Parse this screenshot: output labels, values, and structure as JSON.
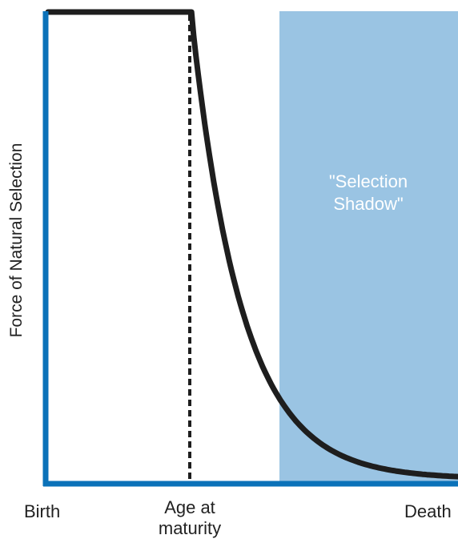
{
  "chart_data": {
    "type": "line",
    "ylabel": "Force of Natural Selection",
    "x_tick_labels": {
      "birth": "Birth",
      "maturity": "Age at\nmaturity",
      "death": "Death"
    },
    "annotation": "\"Selection\nShadow\"",
    "series": [
      {
        "shape": "flat at maximum from birth to age at maturity, then exponential decline toward zero by death",
        "points": [
          {
            "x": 0.0,
            "y": 1.0
          },
          {
            "x": 0.35,
            "y": 1.0
          },
          {
            "x": 0.45,
            "y": 0.55
          },
          {
            "x": 0.55,
            "y": 0.3
          },
          {
            "x": 0.7,
            "y": 0.14
          },
          {
            "x": 0.85,
            "y": 0.05
          },
          {
            "x": 1.0,
            "y": 0.01
          }
        ]
      }
    ],
    "maturity_x": 0.35,
    "shadow_start_x": 0.56,
    "colors": {
      "axis": "#0b72b9",
      "curve": "#1e1e1e",
      "shadow": "#9ac4e3",
      "maturity_line": "#1e1e1e"
    }
  }
}
